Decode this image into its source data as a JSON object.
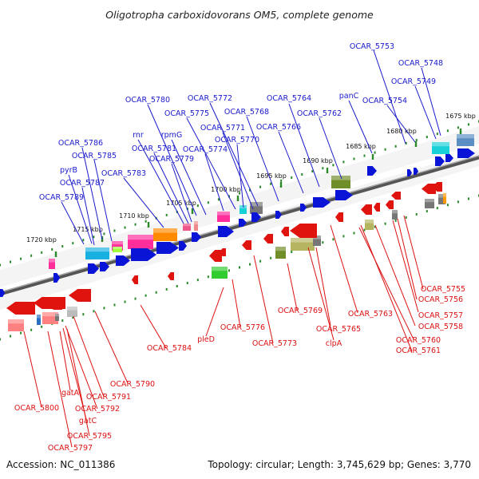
{
  "title": "Oligotropha carboxidovorans OM5, complete genome",
  "footer": {
    "accession": "Accession: NC_011386",
    "summary": "Topology: circular; Length: 3,745,629 bp; Genes: 3,770"
  },
  "scale_labels": [
    "1675 kbp",
    "1680 kbp",
    "1685 kbp",
    "1690 kbp",
    "1695 kbp",
    "1700 kbp",
    "1705 kbp",
    "1710 kbp",
    "1715 kbp",
    "1720 kbp"
  ],
  "forward_genes": [
    "OCAR_5753",
    "OCAR_5748",
    "OCAR_5749",
    "OCAR_5754",
    "panC",
    "OCAR_5762",
    "OCAR_5764",
    "OCAR_5766",
    "OCAR_5768",
    "OCAR_5772",
    "OCAR_5771",
    "OCAR_5770",
    "OCAR_5775",
    "OCAR_5780",
    "OCAR_5774",
    "rpmG",
    "OCAR_5779",
    "rnr",
    "OCAR_5781",
    "OCAR_5783",
    "OCAR_5786",
    "OCAR_5785",
    "pyrB",
    "OCAR_5787",
    "OCAR_5789"
  ],
  "reverse_genes": [
    "OCAR_5755",
    "OCAR_5756",
    "OCAR_5757",
    "OCAR_5758",
    "OCAR_5760",
    "OCAR_5761",
    "OCAR_5763",
    "OCAR_5765",
    "clpA",
    "OCAR_5769",
    "OCAR_5773",
    "OCAR_5776",
    "pleD",
    "OCAR_5784",
    "OCAR_5790",
    "OCAR_5791",
    "gatA",
    "OCAR_5792",
    "gatC",
    "OCAR_5800",
    "OCAR_5795",
    "OCAR_5797"
  ],
  "colors": {
    "forward_label": "#1a1acc",
    "reverse_label": "#dd1111",
    "forward_arrow": "#0a14d6",
    "reverse_arrow": "#e0140e",
    "backbone": "#666666",
    "ticks": "#2a8a2a"
  }
}
